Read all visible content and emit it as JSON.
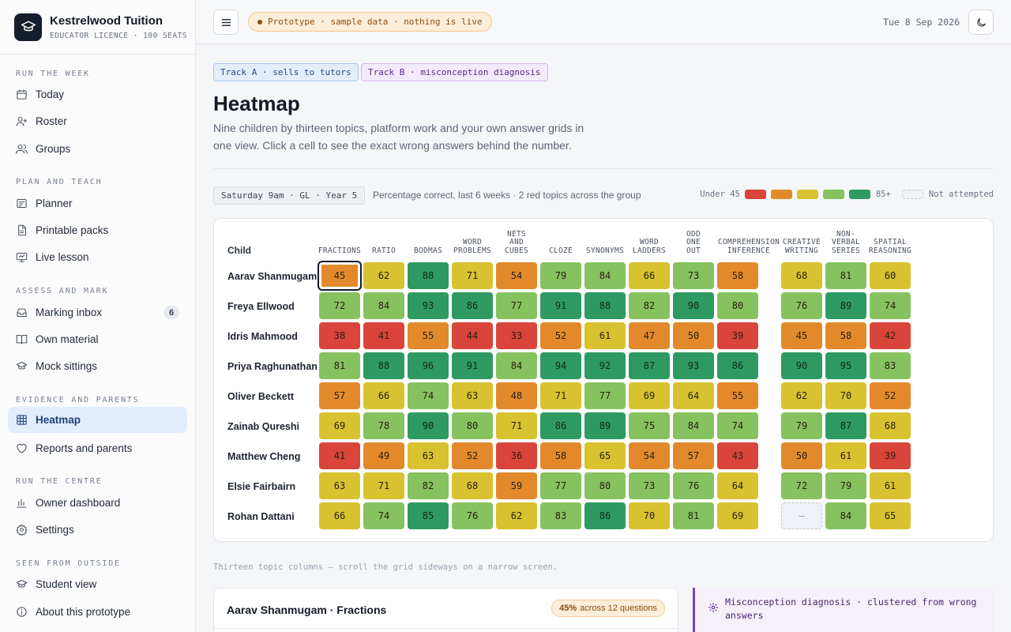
{
  "brand": {
    "name": "Kestrelwood Tuition",
    "subtitle": "EDUCATOR LICENCE · 100 SEATS"
  },
  "nav": {
    "sections": [
      {
        "label": "RUN THE WEEK",
        "items": [
          {
            "label": "Today",
            "icon": "calendar-icon"
          },
          {
            "label": "Roster",
            "icon": "user-plus-icon"
          },
          {
            "label": "Groups",
            "icon": "users-icon"
          }
        ]
      },
      {
        "label": "PLAN AND TEACH",
        "items": [
          {
            "label": "Planner",
            "icon": "planner-icon"
          },
          {
            "label": "Printable packs",
            "icon": "document-icon"
          },
          {
            "label": "Live lesson",
            "icon": "monitor-icon"
          }
        ]
      },
      {
        "label": "ASSESS AND MARK",
        "items": [
          {
            "label": "Marking inbox",
            "icon": "inbox-icon",
            "badge": "6"
          },
          {
            "label": "Own material",
            "icon": "book-icon"
          },
          {
            "label": "Mock sittings",
            "icon": "graduation-cap-icon"
          }
        ]
      },
      {
        "label": "EVIDENCE AND PARENTS",
        "items": [
          {
            "label": "Heatmap",
            "icon": "grid-icon",
            "active": true
          },
          {
            "label": "Reports and parents",
            "icon": "heart-icon"
          }
        ]
      },
      {
        "label": "RUN THE CENTRE",
        "items": [
          {
            "label": "Owner dashboard",
            "icon": "bar-chart-icon"
          },
          {
            "label": "Settings",
            "icon": "gear-icon"
          }
        ]
      },
      {
        "label": "SEEN FROM OUTSIDE",
        "items": [
          {
            "label": "Student view",
            "icon": "graduation-cap-icon"
          },
          {
            "label": "About this prototype",
            "icon": "info-icon"
          }
        ]
      }
    ]
  },
  "topbar": {
    "prototype_label": "Prototype · sample data · nothing is live",
    "date": "Tue 8 Sep 2026"
  },
  "tracks": {
    "a": "Track A · sells to tutors",
    "b": "Track B · misconception diagnosis"
  },
  "page": {
    "title": "Heatmap",
    "subtitle": "Nine children by thirteen topics, platform work and your own answer grids in one view. Click a cell to see the exact wrong answers behind the number."
  },
  "filter": {
    "cohort": "Saturday 9am · GL · Year 5",
    "caption": "Percentage correct, last 6 weeks · 2 red topics across the group"
  },
  "legend": {
    "low_label": "Under 45",
    "high_label": "85+",
    "na_label": "Not attempted",
    "colors": [
      "#d9453a",
      "#e28a2b",
      "#d8c22f",
      "#86c260",
      "#2e9a62"
    ]
  },
  "heatmap": {
    "child_header": "Child",
    "topics": [
      "FRACTIONS",
      "RATIO",
      "BODMAS",
      "WORD PROBLEMS",
      "NETS AND CUBES",
      "CLOZE",
      "SYNONYMS",
      "WORD LADDERS",
      "ODD ONE OUT",
      "COMPREHENSION INFERENCE",
      "CREATIVE WRITING",
      "NON- VERBAL SERIES",
      "SPATIAL REASONING"
    ],
    "rows": [
      {
        "name": "Aarav Shanmugam",
        "values": [
          45,
          62,
          88,
          71,
          54,
          79,
          84,
          66,
          73,
          58,
          68,
          81,
          60
        ]
      },
      {
        "name": "Freya Ellwood",
        "values": [
          72,
          84,
          93,
          86,
          77,
          91,
          88,
          82,
          90,
          80,
          76,
          89,
          74
        ]
      },
      {
        "name": "Idris Mahmood",
        "values": [
          38,
          41,
          55,
          44,
          33,
          52,
          61,
          47,
          50,
          39,
          45,
          58,
          42
        ]
      },
      {
        "name": "Priya Raghunathan",
        "values": [
          81,
          88,
          96,
          91,
          84,
          94,
          92,
          87,
          93,
          86,
          90,
          95,
          83
        ]
      },
      {
        "name": "Oliver Beckett",
        "values": [
          57,
          66,
          74,
          63,
          48,
          71,
          77,
          69,
          64,
          55,
          62,
          70,
          52
        ]
      },
      {
        "name": "Zainab Qureshi",
        "values": [
          69,
          78,
          90,
          80,
          71,
          86,
          89,
          75,
          84,
          74,
          79,
          87,
          68
        ]
      },
      {
        "name": "Matthew Cheng",
        "values": [
          41,
          49,
          63,
          52,
          36,
          58,
          65,
          54,
          57,
          43,
          50,
          61,
          39
        ]
      },
      {
        "name": "Elsie Fairbairn",
        "values": [
          63,
          71,
          82,
          68,
          59,
          77,
          80,
          73,
          76,
          64,
          72,
          79,
          61
        ]
      },
      {
        "name": "Rohan Dattani",
        "values": [
          66,
          74,
          85,
          76,
          62,
          83,
          86,
          70,
          81,
          69,
          null,
          84,
          65
        ]
      }
    ],
    "not_attempted_mark": "–",
    "selected": {
      "row": 0,
      "col": 0
    }
  },
  "footnote": "Thirteen topic columns — scroll the grid sideways on a narrow screen.",
  "detail": {
    "title": "Aarav Shanmugam · Fractions",
    "pct": "45%",
    "summary": "across 12 questions"
  },
  "misconception": {
    "text": "Misconception diagnosis · clustered from wrong answers"
  }
}
